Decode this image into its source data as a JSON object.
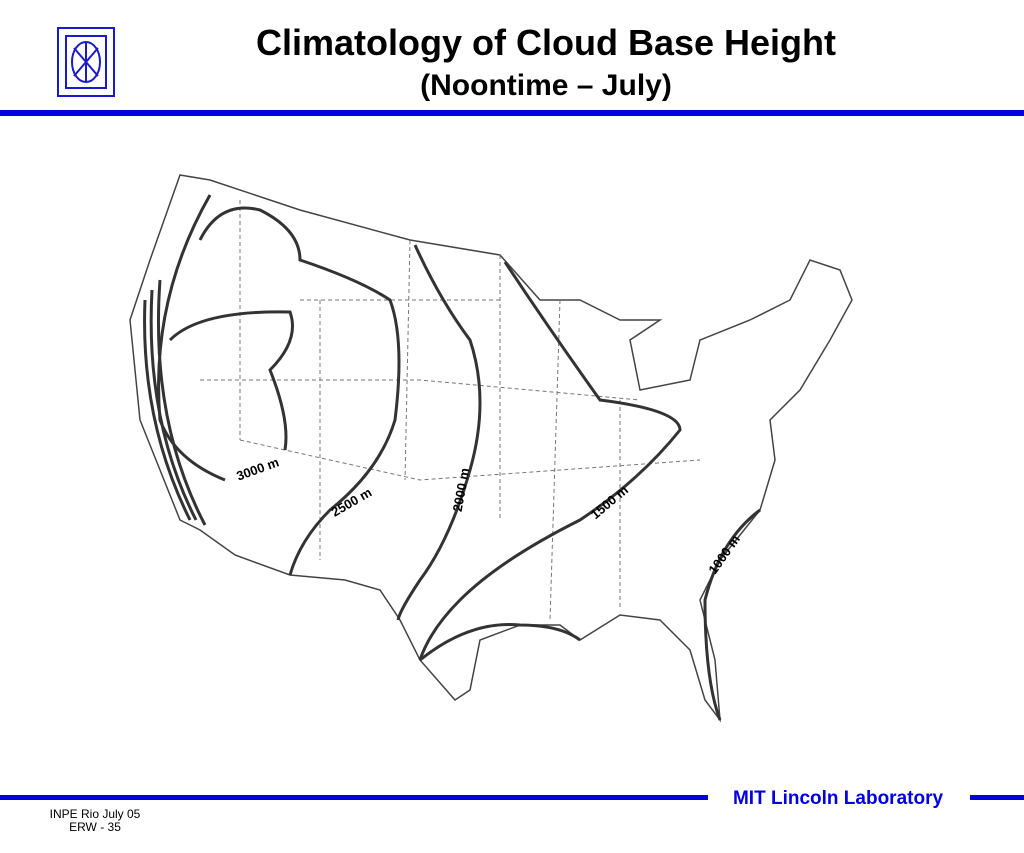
{
  "header": {
    "title": "Climatology of Cloud Base Height",
    "subtitle": "(Noontime – July)"
  },
  "map": {
    "contours": [
      {
        "label": "3000 m"
      },
      {
        "label": "2500 m"
      },
      {
        "label": "2000 m"
      },
      {
        "label": "1500 m"
      },
      {
        "label": "1000 m"
      }
    ]
  },
  "footer": {
    "organization": "MIT Lincoln Laboratory",
    "event": "INPE Rio  July 05",
    "page": "ERW - 35"
  }
}
